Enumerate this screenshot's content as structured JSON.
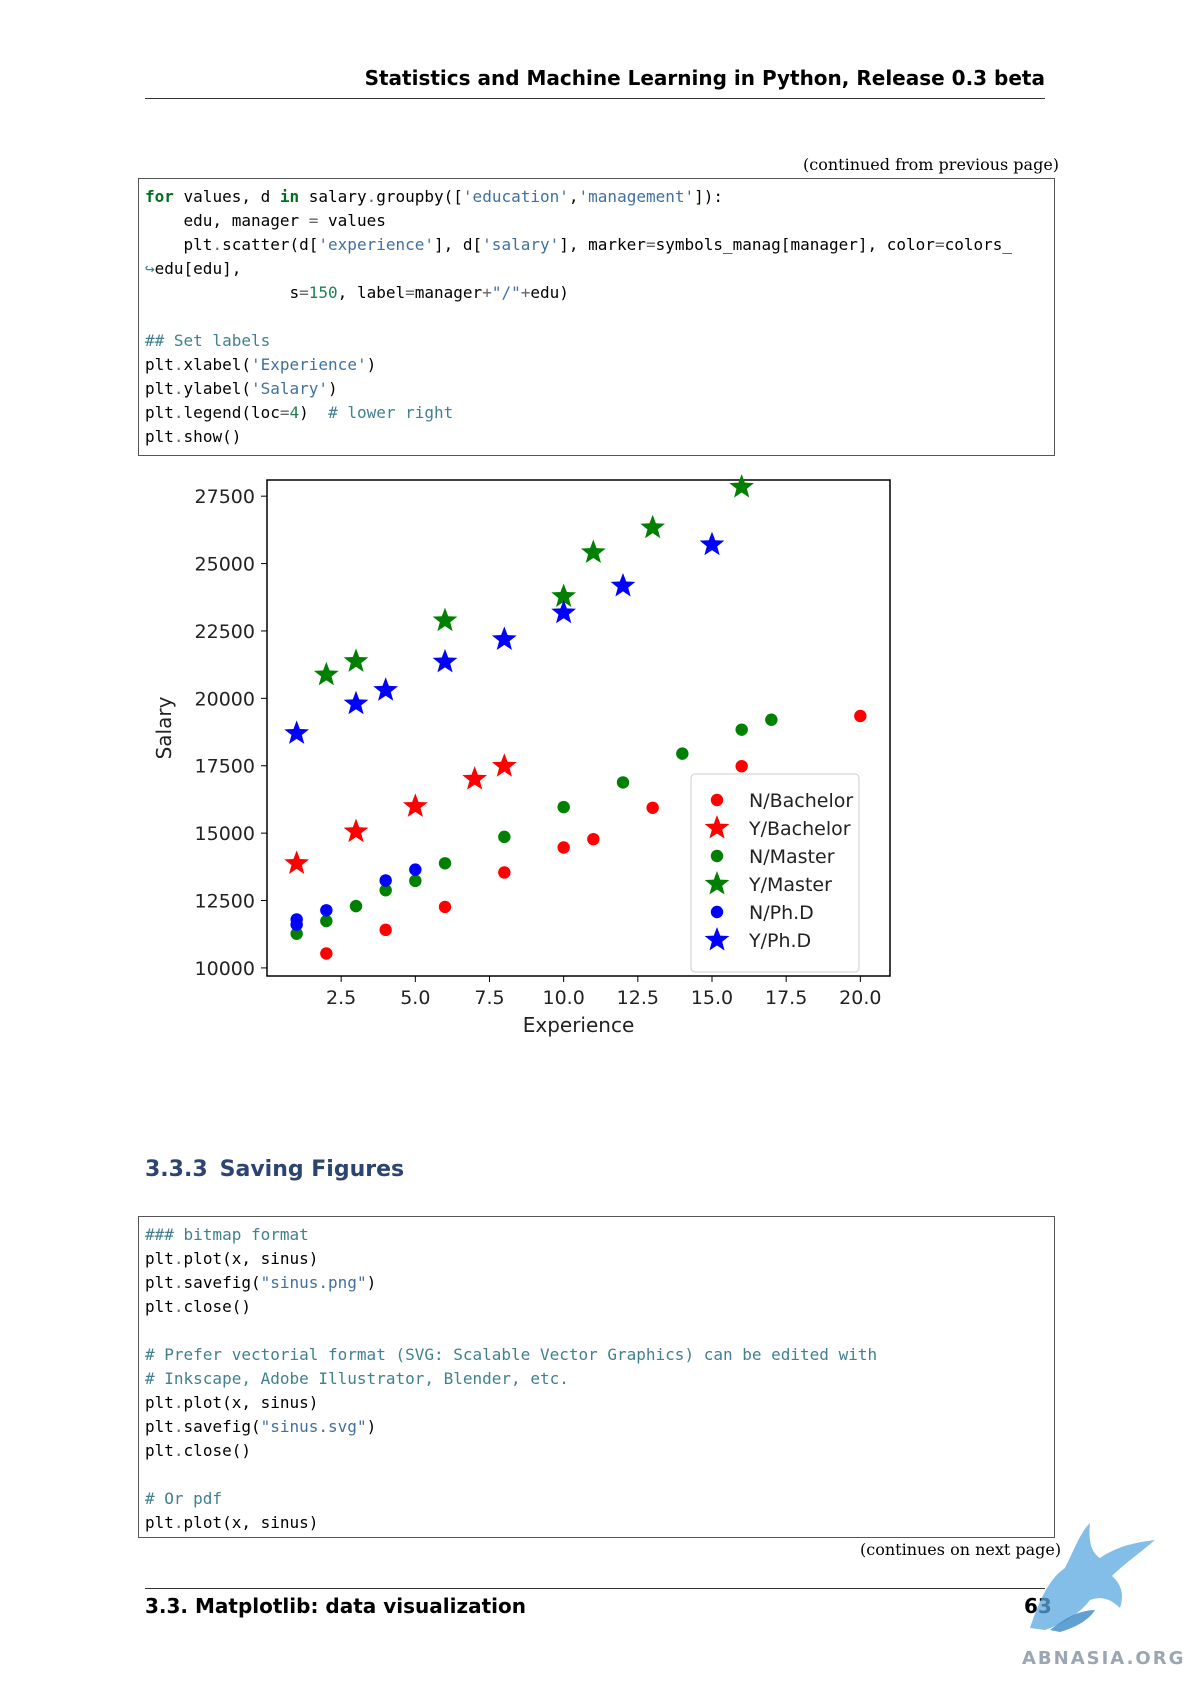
{
  "header": {
    "running_title": "Statistics and Machine Learning in Python, Release 0.3 beta"
  },
  "code_block_1": {
    "continued_note": "(continued from previous page)",
    "lines": [
      [
        [
          "kw",
          "for"
        ],
        [
          "t",
          " values, d "
        ],
        [
          "kw",
          "in"
        ],
        [
          "t",
          " salary"
        ],
        [
          "op",
          "."
        ],
        [
          "t",
          "groupby(["
        ],
        [
          "str",
          "'education'"
        ],
        [
          "t",
          ","
        ],
        [
          "str",
          "'management'"
        ],
        [
          "t",
          "]):"
        ]
      ],
      [
        [
          "t",
          "    edu, manager "
        ],
        [
          "op",
          "="
        ],
        [
          "t",
          " values"
        ]
      ],
      [
        [
          "t",
          "    plt"
        ],
        [
          "op",
          "."
        ],
        [
          "t",
          "scatter(d["
        ],
        [
          "str",
          "'experience'"
        ],
        [
          "t",
          "], d["
        ],
        [
          "str",
          "'salary'"
        ],
        [
          "t",
          "], marker"
        ],
        [
          "op",
          "="
        ],
        [
          "t",
          "symbols_manag[manager], color"
        ],
        [
          "op",
          "="
        ],
        [
          "t",
          "colors_"
        ]
      ],
      [
        [
          "cm",
          "↪"
        ],
        [
          "t",
          "edu[edu],"
        ]
      ],
      [
        [
          "t",
          "               s"
        ],
        [
          "op",
          "="
        ],
        [
          "num",
          "150"
        ],
        [
          "t",
          ", label"
        ],
        [
          "op",
          "="
        ],
        [
          "t",
          "manager"
        ],
        [
          "op",
          "+"
        ],
        [
          "str",
          "\"/\""
        ],
        [
          "op",
          "+"
        ],
        [
          "t",
          "edu)"
        ]
      ],
      [
        [
          "t",
          ""
        ]
      ],
      [
        [
          "cm",
          "## Set labels"
        ]
      ],
      [
        [
          "t",
          "plt"
        ],
        [
          "op",
          "."
        ],
        [
          "t",
          "xlabel("
        ],
        [
          "str",
          "'Experience'"
        ],
        [
          "t",
          ")"
        ]
      ],
      [
        [
          "t",
          "plt"
        ],
        [
          "op",
          "."
        ],
        [
          "t",
          "ylabel("
        ],
        [
          "str",
          "'Salary'"
        ],
        [
          "t",
          ")"
        ]
      ],
      [
        [
          "t",
          "plt"
        ],
        [
          "op",
          "."
        ],
        [
          "t",
          "legend(loc"
        ],
        [
          "op",
          "="
        ],
        [
          "num",
          "4"
        ],
        [
          "t",
          ")  "
        ],
        [
          "cm",
          "# lower right"
        ]
      ],
      [
        [
          "t",
          "plt"
        ],
        [
          "op",
          "."
        ],
        [
          "t",
          "show()"
        ]
      ]
    ]
  },
  "chart_data": {
    "type": "scatter",
    "xlabel": "Experience",
    "ylabel": "Salary",
    "xlim": [
      0,
      21
    ],
    "ylim": [
      9700,
      28100
    ],
    "x_ticks": [
      2.5,
      5.0,
      7.5,
      10.0,
      12.5,
      15.0,
      17.5,
      20.0
    ],
    "x_tick_labels": [
      "2.5",
      "5.0",
      "7.5",
      "10.0",
      "12.5",
      "15.0",
      "17.5",
      "20.0"
    ],
    "y_ticks": [
      10000,
      12500,
      15000,
      17500,
      20000,
      22500,
      25000,
      27500
    ],
    "y_tick_labels": [
      "10000",
      "12500",
      "15000",
      "17500",
      "20000",
      "22500",
      "25000",
      "27500"
    ],
    "legend_position": "lower-right",
    "series": [
      {
        "name": "N/Bachelor",
        "marker": "circle",
        "color": "#ff0000",
        "points": [
          [
            2,
            10535
          ],
          [
            4,
            11411
          ],
          [
            6,
            12263
          ],
          [
            8,
            13540
          ],
          [
            10,
            14467
          ],
          [
            11,
            14777
          ],
          [
            13,
            15941
          ],
          [
            16,
            17483
          ],
          [
            20,
            19346
          ]
        ]
      },
      {
        "name": "Y/Bachelor",
        "marker": "star",
        "color": "#ff0000",
        "points": [
          [
            1,
            13876
          ],
          [
            3,
            15056
          ],
          [
            5,
            15993
          ],
          [
            7,
            17004
          ],
          [
            8,
            17483
          ]
        ]
      },
      {
        "name": "N/Master",
        "marker": "circle",
        "color": "#008000",
        "points": [
          [
            1,
            11269
          ],
          [
            2,
            11739
          ],
          [
            3,
            12292
          ],
          [
            4,
            12883
          ],
          [
            5,
            13231
          ],
          [
            6,
            13881
          ],
          [
            8,
            14861
          ],
          [
            10,
            15967
          ],
          [
            12,
            16882
          ],
          [
            14,
            17949
          ],
          [
            16,
            18838
          ],
          [
            17,
            19207
          ]
        ]
      },
      {
        "name": "Y/Master",
        "marker": "star",
        "color": "#008000",
        "points": [
          [
            2,
            20872
          ],
          [
            3,
            21371
          ],
          [
            6,
            22884
          ],
          [
            10,
            23780
          ],
          [
            11,
            25410
          ],
          [
            13,
            26330
          ],
          [
            16,
            27837
          ]
        ]
      },
      {
        "name": "N/Ph.D",
        "marker": "circle",
        "color": "#0000ff",
        "points": [
          [
            1,
            11608
          ],
          [
            1,
            11800
          ],
          [
            2,
            12138
          ],
          [
            4,
            13245
          ],
          [
            5,
            13647
          ]
        ]
      },
      {
        "name": "Y/Ph.D",
        "marker": "star",
        "color": "#0000ff",
        "points": [
          [
            1,
            18701
          ],
          [
            3,
            19800
          ],
          [
            4,
            20300
          ],
          [
            6,
            21352
          ],
          [
            8,
            22184
          ],
          [
            10,
            23174
          ],
          [
            12,
            24170
          ],
          [
            15,
            25700
          ]
        ]
      }
    ]
  },
  "section": {
    "number": "3.3.3",
    "title": "Saving Figures"
  },
  "code_block_2": {
    "continues_note": "(continues on next page)",
    "lines": [
      [
        [
          "cm",
          "### bitmap format"
        ]
      ],
      [
        [
          "t",
          "plt"
        ],
        [
          "op",
          "."
        ],
        [
          "t",
          "plot(x, sinus)"
        ]
      ],
      [
        [
          "t",
          "plt"
        ],
        [
          "op",
          "."
        ],
        [
          "t",
          "savefig("
        ],
        [
          "str",
          "\"sinus.png\""
        ],
        [
          "t",
          ")"
        ]
      ],
      [
        [
          "t",
          "plt"
        ],
        [
          "op",
          "."
        ],
        [
          "t",
          "close()"
        ]
      ],
      [
        [
          "t",
          ""
        ]
      ],
      [
        [
          "cm",
          "# Prefer vectorial format (SVG: Scalable Vector Graphics) can be edited with"
        ]
      ],
      [
        [
          "cm",
          "# Inkscape, Adobe Illustrator, Blender, etc."
        ]
      ],
      [
        [
          "t",
          "plt"
        ],
        [
          "op",
          "."
        ],
        [
          "t",
          "plot(x, sinus)"
        ]
      ],
      [
        [
          "t",
          "plt"
        ],
        [
          "op",
          "."
        ],
        [
          "t",
          "savefig("
        ],
        [
          "str",
          "\"sinus.svg\""
        ],
        [
          "t",
          ")"
        ]
      ],
      [
        [
          "t",
          "plt"
        ],
        [
          "op",
          "."
        ],
        [
          "t",
          "close()"
        ]
      ],
      [
        [
          "t",
          ""
        ]
      ],
      [
        [
          "cm",
          "# Or pdf"
        ]
      ],
      [
        [
          "t",
          "plt"
        ],
        [
          "op",
          "."
        ],
        [
          "t",
          "plot(x, sinus)"
        ]
      ]
    ]
  },
  "footer": {
    "section_label": "3.3. Matplotlib: data visualization",
    "page_number": "63"
  },
  "watermark": {
    "text": "ABNASIA.ORG",
    "color": "#5aa8e0"
  }
}
